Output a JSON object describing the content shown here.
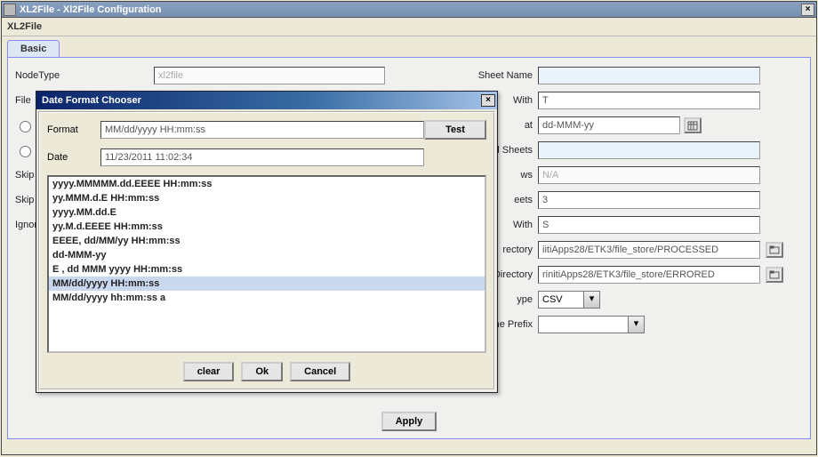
{
  "window": {
    "title": "XL2File - Xl2File Configuration",
    "app_name": "XL2File",
    "close_icon": "×"
  },
  "tab": {
    "basic_label": "Basic"
  },
  "form": {
    "left": {
      "nodetype_label": "NodeType",
      "nodetype_value": "xl2file",
      "file_label": "File",
      "skip_label_1": "Skip",
      "skip_label_2": "Skip",
      "ignore_label": "Ignore"
    },
    "right": {
      "sheet_name_label": "Sheet Name",
      "with_label_1": "With",
      "with_value_1": "T",
      "dateformat_label": "at",
      "dateformat_value": "dd-MMM-yy",
      "selected_sheets_label": "s Selected Sheets",
      "rows_label": "ws",
      "rows_value": "N/A",
      "sheets_label": "eets",
      "sheets_value": "3",
      "with_label_2": "With",
      "with_value_2": "S",
      "processed_dir_label": "rectory",
      "processed_dir_value": "iitiApps28/ETK3/file_store/PROCESSED",
      "errored_dir_label": "Directory",
      "errored_dir_value": "rinitiApps28/ETK3/file_store/ERRORED",
      "type_label": "ype",
      "type_value": "CSV",
      "prefix_label": "ion File Name Prefix",
      "prefix_value": ""
    }
  },
  "apply_label": "Apply",
  "dialog": {
    "title": "Date Format Chooser",
    "close_icon": "×",
    "format_label": "Format",
    "format_value": "MM/dd/yyyy HH:mm:ss",
    "test_label": "Test",
    "date_label": "Date",
    "date_value": "11/23/2011 11:02:34",
    "items": [
      "yyyy.MMMMM.dd.EEEE HH:mm:ss",
      "yy.MMM.d.E HH:mm:ss",
      "yyyy.MM.dd.E",
      "yy.M.d.EEEE HH:mm:ss",
      "EEEE, dd/MM/yy HH:mm:ss",
      "dd-MMM-yy",
      "E , dd MMM yyyy  HH:mm:ss",
      "MM/dd/yyyy HH:mm:ss",
      "MM/dd/yyyy hh:mm:ss a"
    ],
    "selected_index": 7,
    "buttons": {
      "clear": "clear",
      "ok": "Ok",
      "cancel": "Cancel"
    }
  },
  "colors": {
    "outer_titlebar": "#7d95b7",
    "dialog_titlebar_start": "#0a246a",
    "dialog_titlebar_end": "#a6c3e9",
    "panel_bg": "#ece9d8",
    "tab_border": "#8a8aff",
    "list_selected": "#c9d8ef"
  }
}
